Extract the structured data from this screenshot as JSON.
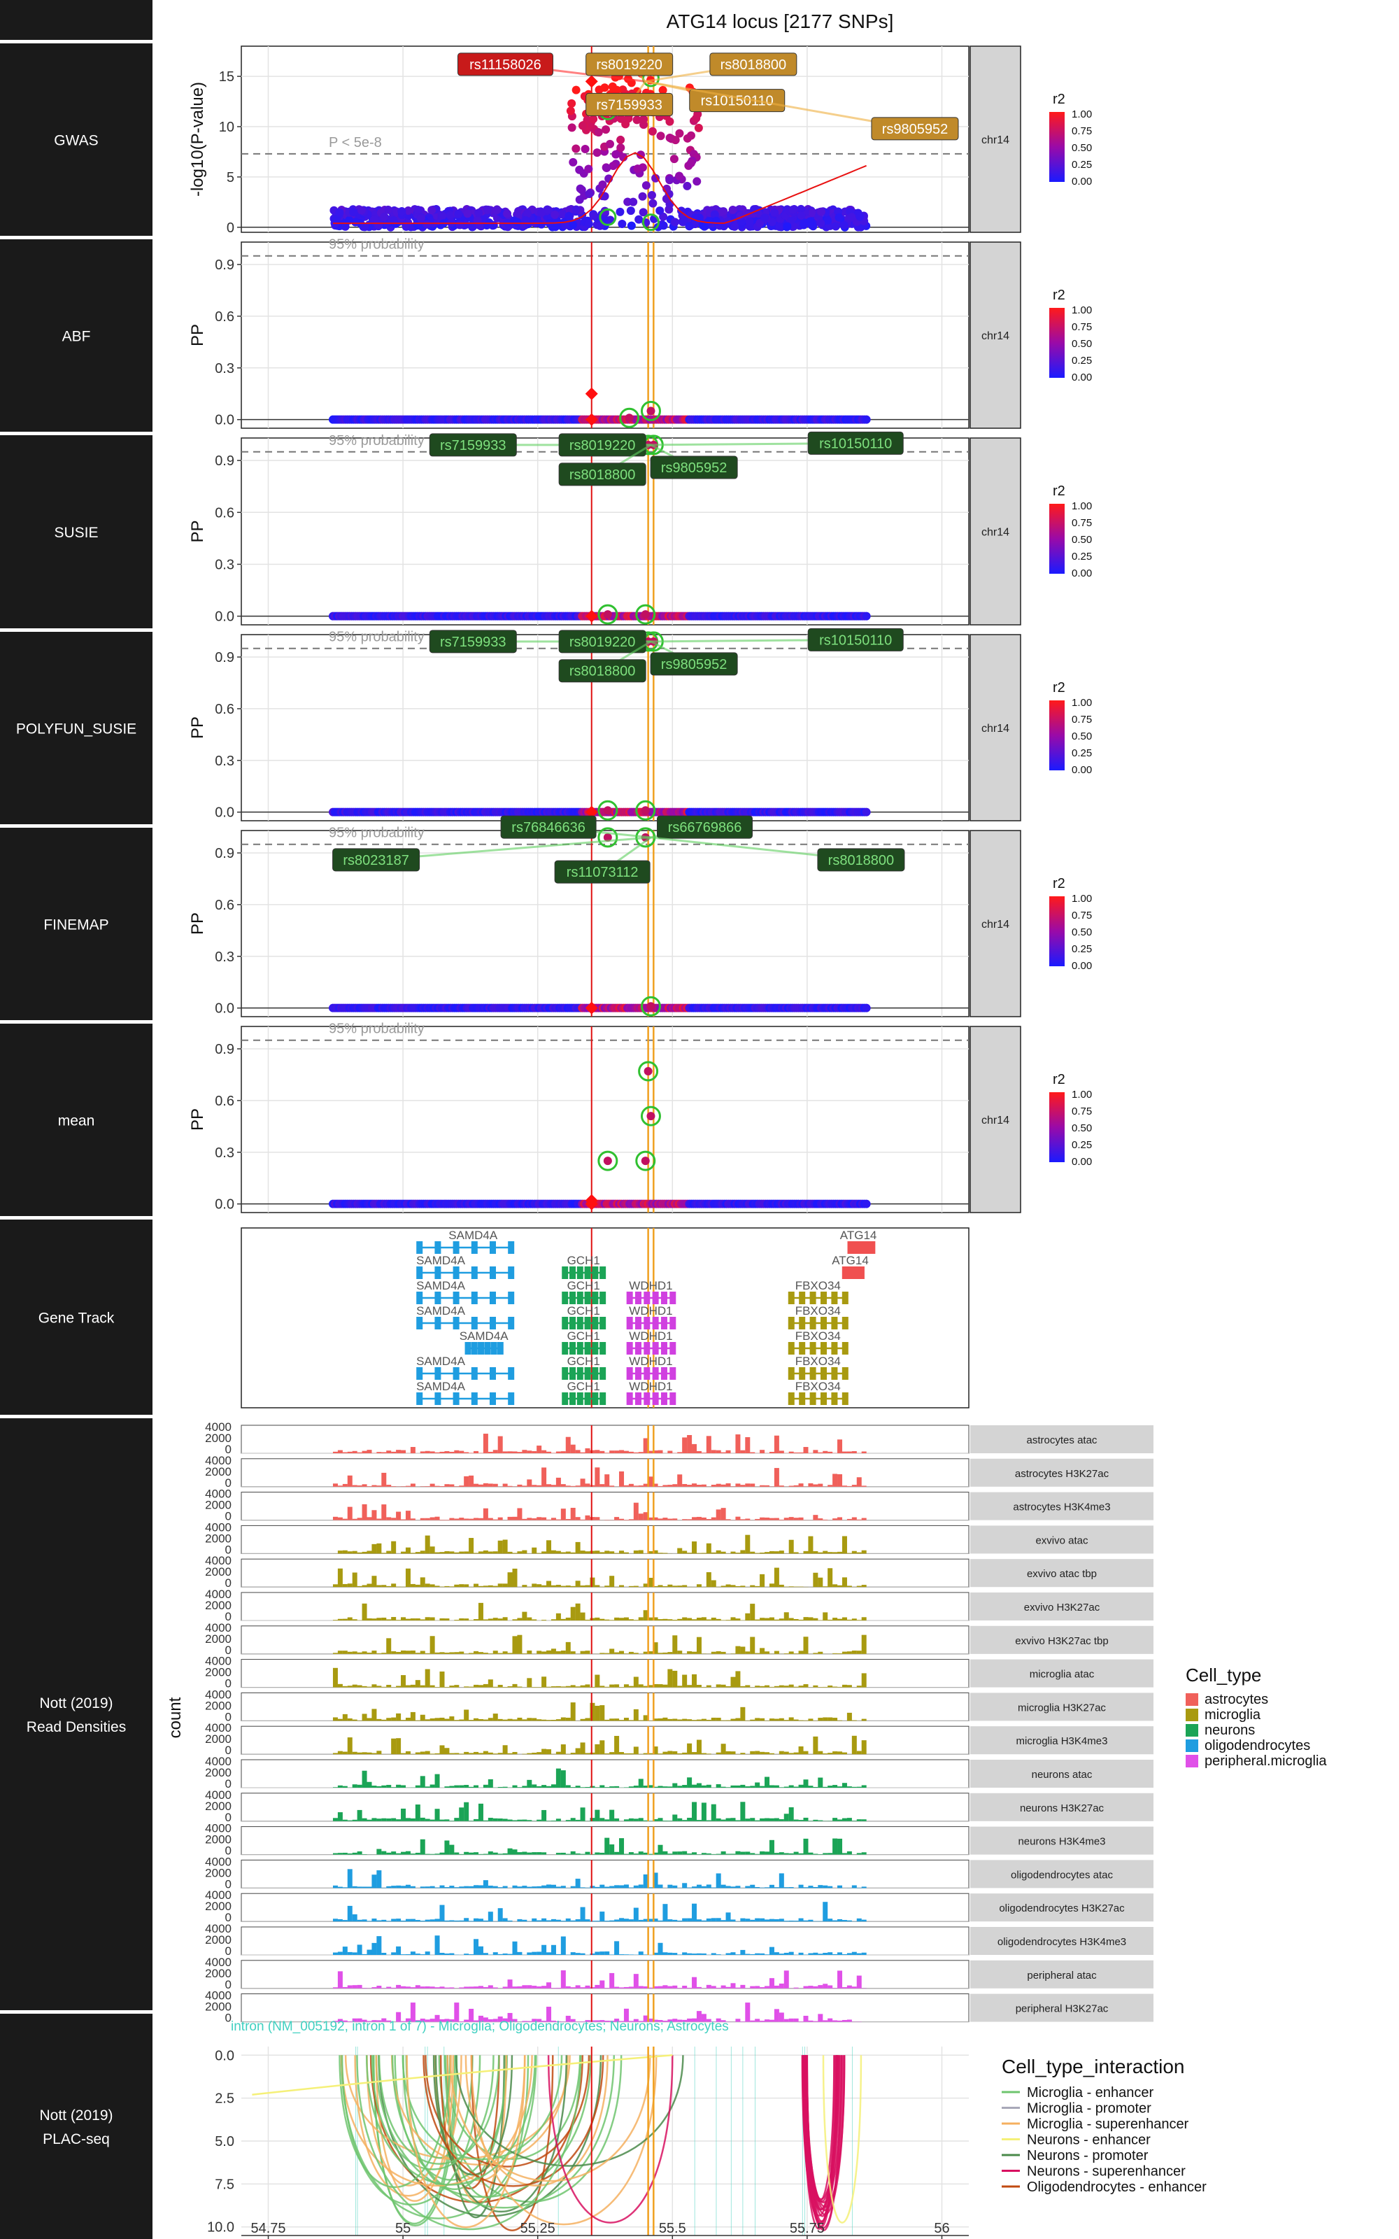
{
  "chart_data": {
    "type": "composite-locus-plot",
    "title": "ATG14 locus [2177 SNPs]",
    "chromosome": "chr14",
    "x_axis": {
      "ticks": [
        "54.75",
        "55",
        "55.25",
        "55.5",
        "55.75",
        "56"
      ],
      "tick_values": [
        54.75,
        55.0,
        55.25,
        55.5,
        55.75,
        56.0
      ],
      "range": [
        54.7,
        56.05
      ]
    },
    "lead_snp_position": 55.35,
    "credible_set_positions": [
      55.455,
      55.465
    ],
    "panels": [
      {
        "name": "GWAS",
        "ylabel": "-log10(P-value)",
        "y_ticks": [
          "0",
          "5",
          "10",
          "15"
        ],
        "y_tick_values": [
          0,
          5,
          10,
          15
        ],
        "y_range": [
          -0.5,
          18
        ],
        "threshold_label": "P < 5e-8",
        "threshold_value": 7.3,
        "labels": [
          {
            "text": "rs11158026",
            "x": 55.19,
            "y": 16.2,
            "color": "#ff3030",
            "fill": "#c81a1a",
            "text_color": "#ffffff"
          },
          {
            "text": "rs8019220",
            "x": 55.42,
            "y": 16.2,
            "color": "#f0b040",
            "fill": "#c08a2a",
            "text_color": "#ffffff"
          },
          {
            "text": "rs8018800",
            "x": 55.65,
            "y": 16.2,
            "color": "#f0b040",
            "fill": "#c08a2a",
            "text_color": "#ffffff"
          },
          {
            "text": "rs7159933",
            "x": 55.42,
            "y": 12.2,
            "color": "#f0b040",
            "fill": "#c08a2a",
            "text_color": "#ffffff"
          },
          {
            "text": "rs10150110",
            "x": 55.62,
            "y": 12.6,
            "color": "#f0b040",
            "fill": "#c08a2a",
            "text_color": "#ffffff"
          },
          {
            "text": "rs9805952",
            "x": 55.95,
            "y": 9.8,
            "color": "#f0b040",
            "fill": "#c08a2a",
            "text_color": "#ffffff"
          }
        ]
      },
      {
        "name": "ABF",
        "ylabel": "PP",
        "y_ticks": [
          "0.0",
          "0.3",
          "0.6",
          "0.9"
        ],
        "y_tick_values": [
          0,
          0.3,
          0.6,
          0.9
        ],
        "y_range": [
          -0.05,
          1.03
        ],
        "threshold_label": "95% probability",
        "threshold_value": 0.95,
        "points": [
          {
            "x": 55.35,
            "y": 0.15,
            "shape": "diamond"
          },
          {
            "x": 55.46,
            "y": 0.05,
            "shape": "ring"
          },
          {
            "x": 55.42,
            "y": 0.01,
            "shape": "ring"
          }
        ],
        "labels": []
      },
      {
        "name": "SUSIE",
        "ylabel": "PP",
        "y_ticks": [
          "0.0",
          "0.3",
          "0.6",
          "0.9"
        ],
        "y_tick_values": [
          0,
          0.3,
          0.6,
          0.9
        ],
        "y_range": [
          -0.05,
          1.03
        ],
        "threshold_label": "95% probability",
        "threshold_value": 0.95,
        "points": [
          {
            "x": 55.455,
            "y": 0.99,
            "shape": "ring"
          },
          {
            "x": 55.465,
            "y": 0.99,
            "shape": "ring"
          },
          {
            "x": 55.38,
            "y": 0.01,
            "shape": "ring"
          },
          {
            "x": 55.45,
            "y": 0.01,
            "shape": "ring"
          }
        ],
        "labels": [
          {
            "text": "rs7159933",
            "x": 55.13,
            "y": 0.99
          },
          {
            "text": "rs8019220",
            "x": 55.37,
            "y": 0.99
          },
          {
            "text": "rs10150110",
            "x": 55.84,
            "y": 1.0
          },
          {
            "text": "rs8018800",
            "x": 55.37,
            "y": 0.82
          },
          {
            "text": "rs9805952",
            "x": 55.54,
            "y": 0.86
          }
        ]
      },
      {
        "name": "POLYFUN_SUSIE",
        "ylabel": "PP",
        "y_ticks": [
          "0.0",
          "0.3",
          "0.6",
          "0.9"
        ],
        "y_tick_values": [
          0,
          0.3,
          0.6,
          0.9
        ],
        "y_range": [
          -0.05,
          1.03
        ],
        "threshold_label": "95% probability",
        "threshold_value": 0.95,
        "points": [
          {
            "x": 55.455,
            "y": 0.99,
            "shape": "ring"
          },
          {
            "x": 55.465,
            "y": 0.99,
            "shape": "ring"
          },
          {
            "x": 55.38,
            "y": 0.01,
            "shape": "ring"
          },
          {
            "x": 55.45,
            "y": 0.01,
            "shape": "ring"
          }
        ],
        "labels": [
          {
            "text": "rs7159933",
            "x": 55.13,
            "y": 0.99
          },
          {
            "text": "rs8019220",
            "x": 55.37,
            "y": 0.99
          },
          {
            "text": "rs10150110",
            "x": 55.84,
            "y": 1.0
          },
          {
            "text": "rs8018800",
            "x": 55.37,
            "y": 0.82
          },
          {
            "text": "rs9805952",
            "x": 55.54,
            "y": 0.86
          }
        ]
      },
      {
        "name": "FINEMAP",
        "ylabel": "PP",
        "y_ticks": [
          "0.0",
          "0.3",
          "0.6",
          "0.9"
        ],
        "y_tick_values": [
          0,
          0.3,
          0.6,
          0.9
        ],
        "y_range": [
          -0.05,
          1.03
        ],
        "threshold_label": "95% probability",
        "threshold_value": 0.95,
        "points": [
          {
            "x": 55.38,
            "y": 0.99,
            "shape": "ring"
          },
          {
            "x": 55.45,
            "y": 0.99,
            "shape": "ring"
          },
          {
            "x": 55.46,
            "y": 0.01,
            "shape": "ring"
          }
        ],
        "labels": [
          {
            "text": "rs76846636",
            "x": 55.27,
            "y": 1.05
          },
          {
            "text": "rs66769866",
            "x": 55.56,
            "y": 1.05
          },
          {
            "text": "rs8023187",
            "x": 54.95,
            "y": 0.86
          },
          {
            "text": "rs11073112",
            "x": 55.37,
            "y": 0.79
          },
          {
            "text": "rs8018800",
            "x": 55.85,
            "y": 0.86
          }
        ]
      },
      {
        "name": "mean",
        "ylabel": "PP",
        "y_ticks": [
          "0.0",
          "0.3",
          "0.6",
          "0.9"
        ],
        "y_tick_values": [
          0,
          0.3,
          0.6,
          0.9
        ],
        "y_range": [
          -0.05,
          1.03
        ],
        "threshold_label": "95% probability",
        "threshold_value": 0.95,
        "points": [
          {
            "x": 55.455,
            "y": 0.77,
            "shape": "ring"
          },
          {
            "x": 55.46,
            "y": 0.51,
            "shape": "ring"
          },
          {
            "x": 55.38,
            "y": 0.25,
            "shape": "ring"
          },
          {
            "x": 55.45,
            "y": 0.25,
            "shape": "ring"
          },
          {
            "x": 55.35,
            "y": 0.02,
            "shape": "diamond"
          }
        ],
        "labels": []
      }
    ],
    "r2_legend": {
      "title": "r2",
      "ticks": [
        "1.00",
        "0.75",
        "0.50",
        "0.25",
        "0.00"
      ]
    },
    "gene_track": {
      "name": "Gene Track",
      "genes": [
        {
          "name": "SAMD4A",
          "start": 55.03,
          "end": 55.2,
          "row": 0,
          "color": "#1f9de0",
          "label_x": 55.13
        },
        {
          "name": "SAMD4A",
          "start": 55.03,
          "end": 55.2,
          "row": 1,
          "color": "#1f9de0",
          "label_x": 55.07
        },
        {
          "name": "SAMD4A",
          "start": 55.03,
          "end": 55.2,
          "row": 2,
          "color": "#1f9de0",
          "label_x": 55.07
        },
        {
          "name": "SAMD4A",
          "start": 55.03,
          "end": 55.2,
          "row": 3,
          "color": "#1f9de0",
          "label_x": 55.07
        },
        {
          "name": "SAMD4A",
          "start": 55.12,
          "end": 55.18,
          "row": 4,
          "color": "#1f9de0",
          "label_x": 55.15
        },
        {
          "name": "SAMD4A",
          "start": 55.03,
          "end": 55.2,
          "row": 5,
          "color": "#1f9de0",
          "label_x": 55.07
        },
        {
          "name": "SAMD4A",
          "start": 55.03,
          "end": 55.2,
          "row": 6,
          "color": "#1f9de0",
          "label_x": 55.07
        },
        {
          "name": "GCH1",
          "start": 55.3,
          "end": 55.37,
          "row": 1,
          "color": "#1ba456",
          "label_x": 55.335
        },
        {
          "name": "GCH1",
          "start": 55.3,
          "end": 55.37,
          "row": 2,
          "color": "#1ba456",
          "label_x": 55.335
        },
        {
          "name": "GCH1",
          "start": 55.3,
          "end": 55.37,
          "row": 3,
          "color": "#1ba456",
          "label_x": 55.335
        },
        {
          "name": "GCH1",
          "start": 55.3,
          "end": 55.37,
          "row": 4,
          "color": "#1ba456",
          "label_x": 55.335
        },
        {
          "name": "GCH1",
          "start": 55.3,
          "end": 55.37,
          "row": 5,
          "color": "#1ba456",
          "label_x": 55.335
        },
        {
          "name": "GCH1",
          "start": 55.3,
          "end": 55.37,
          "row": 6,
          "color": "#1ba456",
          "label_x": 55.335
        },
        {
          "name": "WDHD1",
          "start": 55.42,
          "end": 55.5,
          "row": 2,
          "color": "#d040e0",
          "label_x": 55.46
        },
        {
          "name": "WDHD1",
          "start": 55.42,
          "end": 55.5,
          "row": 3,
          "color": "#d040e0",
          "label_x": 55.46
        },
        {
          "name": "WDHD1",
          "start": 55.42,
          "end": 55.5,
          "row": 4,
          "color": "#d040e0",
          "label_x": 55.46
        },
        {
          "name": "WDHD1",
          "start": 55.42,
          "end": 55.5,
          "row": 5,
          "color": "#d040e0",
          "label_x": 55.46
        },
        {
          "name": "WDHD1",
          "start": 55.42,
          "end": 55.5,
          "row": 6,
          "color": "#d040e0",
          "label_x": 55.46
        },
        {
          "name": "FBXO34",
          "start": 55.72,
          "end": 55.82,
          "row": 2,
          "color": "#a89a10",
          "label_x": 55.77
        },
        {
          "name": "FBXO34",
          "start": 55.72,
          "end": 55.82,
          "row": 3,
          "color": "#a89a10",
          "label_x": 55.77
        },
        {
          "name": "FBXO34",
          "start": 55.72,
          "end": 55.82,
          "row": 4,
          "color": "#a89a10",
          "label_x": 55.77
        },
        {
          "name": "FBXO34",
          "start": 55.72,
          "end": 55.82,
          "row": 5,
          "color": "#a89a10",
          "label_x": 55.77
        },
        {
          "name": "FBXO34",
          "start": 55.72,
          "end": 55.82,
          "row": 6,
          "color": "#a89a10",
          "label_x": 55.77
        },
        {
          "name": "ATG14",
          "start": 55.83,
          "end": 55.87,
          "row": 0,
          "color": "#f05050",
          "label_x": 55.845
        },
        {
          "name": "ATG14",
          "start": 55.82,
          "end": 55.85,
          "row": 1,
          "color": "#f05050",
          "label_x": 55.83
        }
      ]
    },
    "read_densities": {
      "name": "Nott (2019) Read Densities",
      "ylabel": "count",
      "y_ticks": [
        "4000",
        "2000",
        "0"
      ],
      "tracks": [
        {
          "name": "astrocytes atac",
          "cell_type": "astrocytes"
        },
        {
          "name": "astrocytes H3K27ac",
          "cell_type": "astrocytes"
        },
        {
          "name": "astrocytes H3K4me3",
          "cell_type": "astrocytes"
        },
        {
          "name": "exvivo atac",
          "cell_type": "microglia"
        },
        {
          "name": "exvivo atac tbp",
          "cell_type": "microglia"
        },
        {
          "name": "exvivo H3K27ac",
          "cell_type": "microglia"
        },
        {
          "name": "exvivo H3K27ac tbp",
          "cell_type": "microglia"
        },
        {
          "name": "microglia atac",
          "cell_type": "microglia"
        },
        {
          "name": "microglia H3K27ac",
          "cell_type": "microglia"
        },
        {
          "name": "microglia H3K4me3",
          "cell_type": "microglia"
        },
        {
          "name": "neurons atac",
          "cell_type": "neurons"
        },
        {
          "name": "neurons H3K27ac",
          "cell_type": "neurons"
        },
        {
          "name": "neurons H3K4me3",
          "cell_type": "neurons"
        },
        {
          "name": "oligodendrocytes atac",
          "cell_type": "oligodendrocytes"
        },
        {
          "name": "oligodendrocytes H3K27ac",
          "cell_type": "oligodendrocytes"
        },
        {
          "name": "oligodendrocytes H3K4me3",
          "cell_type": "oligodendrocytes"
        },
        {
          "name": "peripheral atac",
          "cell_type": "peripheral.microglia"
        },
        {
          "name": "peripheral H3K27ac",
          "cell_type": "peripheral.microglia"
        }
      ]
    },
    "cell_type_legend": {
      "title": "Cell_type",
      "entries": [
        {
          "name": "astrocytes",
          "color": "#f0605a"
        },
        {
          "name": "microglia",
          "color": "#a89a10"
        },
        {
          "name": "neurons",
          "color": "#1ba456"
        },
        {
          "name": "oligodendrocytes",
          "color": "#1f9de0"
        },
        {
          "name": "peripheral.microglia",
          "color": "#e050e8"
        }
      ]
    },
    "plac_seq": {
      "name": "Nott (2019) PLAC-seq",
      "annotation": "intron (NM_005192, intron 1 of 7) - Microglia; Oligodendrocytes; Neurons; Astrocytes",
      "y_ticks": [
        "0.0",
        "2.5",
        "5.0",
        "7.5",
        "10.0"
      ],
      "y_tick_values": [
        0,
        2.5,
        5,
        7.5,
        10
      ],
      "y_range": [
        -0.5,
        10.5
      ]
    },
    "interaction_legend": {
      "title": "Cell_type_interaction",
      "entries": [
        {
          "name": "Microglia - enhancer",
          "color": "#6ec46e"
        },
        {
          "name": "Microglia - promoter",
          "color": "#a8a8b8"
        },
        {
          "name": "Microglia - superenhancer",
          "color": "#f5b060"
        },
        {
          "name": "Neurons - enhancer",
          "color": "#f5f078"
        },
        {
          "name": "Neurons - promoter",
          "color": "#4a8a4a"
        },
        {
          "name": "Neurons - superenhancer",
          "color": "#d81060"
        },
        {
          "name": "Oligodendrocytes - enhancer",
          "color": "#c04a10"
        }
      ]
    }
  }
}
